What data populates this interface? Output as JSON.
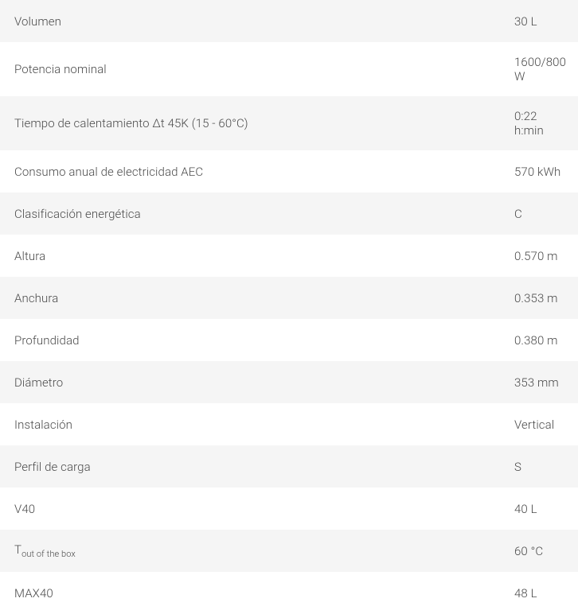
{
  "table": {
    "row_bg_even": "#f5f5f5",
    "row_bg_odd": "#ffffff",
    "text_color": "#4a4a4a",
    "rows": [
      {
        "label": "Volumen",
        "value": "30 L"
      },
      {
        "label": "Potencia nominal",
        "value": "1600/800 W"
      },
      {
        "label": "Tiempo de calentamiento Δt 45K (15 - 60°C)",
        "value": "0:22 h:min"
      },
      {
        "label": "Consumo anual de electricidad AEC",
        "value": "570 kWh"
      },
      {
        "label": "Clasificación energética",
        "value": "C"
      },
      {
        "label": "Altura",
        "value": "0.570 m"
      },
      {
        "label": "Anchura",
        "value": "0.353 m"
      },
      {
        "label": "Profundidad",
        "value": "0.380 m"
      },
      {
        "label": "Diámetro",
        "value": "353 mm"
      },
      {
        "label": "Instalación",
        "value": "Vertical"
      },
      {
        "label": "Perfil de carga",
        "value": "S"
      },
      {
        "label": "V40",
        "value": "40 L"
      },
      {
        "label_prefix": "T",
        "label_sub": "out of the box",
        "value": "60 °C"
      },
      {
        "label": "MAX40",
        "value": "48 L"
      }
    ]
  }
}
